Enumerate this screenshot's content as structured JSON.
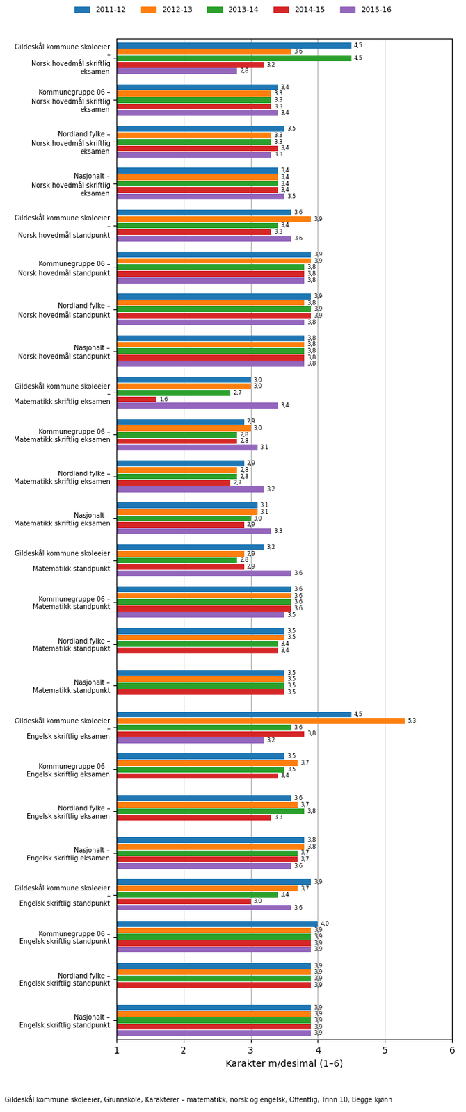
{
  "chart_data": {
    "type": "bar",
    "orientation": "horizontal",
    "xlabel": "Karakter m/desimal (1–6)",
    "annotations": [
      "Gildeskål kommune skoleeier, Grunnskole, Karakterer – matematikk, norsk og engelsk, Offentlig, Trinn 10, Begge kjønn"
    ],
    "xlim": [
      1,
      6
    ],
    "xticks": [
      1,
      2,
      3,
      4,
      5,
      6
    ],
    "grid": true,
    "legend": "upper center",
    "data_labels": true,
    "categories": [
      "Gildeskål kommune skoleeier\n–\nNorsk hovedmål skriftlig\neksamen",
      "Kommunegruppe 06 –\nNorsk hovedmål skriftlig\neksamen",
      "Nordland fylke –\nNorsk hovedmål skriftlig\neksamen",
      "Nasjonalt –\nNorsk hovedmål skriftlig\neksamen",
      "Gildeskål kommune skoleeier\n–\nNorsk hovedmål standpunkt",
      "Kommunegruppe 06 –\nNorsk hovedmål standpunkt",
      "Nordland fylke –\nNorsk hovedmål standpunkt",
      "Nasjonalt –\nNorsk hovedmål standpunkt",
      "Gildeskål kommune skoleeier\n–\nMatematikk skriftlig eksamen",
      "Kommunegruppe 06 –\nMatematikk skriftlig eksamen",
      "Nordland fylke –\nMatematikk skriftlig eksamen",
      "Nasjonalt –\nMatematikk skriftlig eksamen",
      "Gildeskål kommune skoleeier\n–\nMatematikk standpunkt",
      "Kommunegruppe 06 –\nMatematikk standpunkt",
      "Nordland fylke –\nMatematikk standpunkt",
      "Nasjonalt –\nMatematikk standpunkt",
      "Gildeskål kommune skoleeier\n–\nEngelsk skriftlig eksamen",
      "Kommunegruppe 06 –\nEngelsk skriftlig eksamen",
      "Nordland fylke –\nEngelsk skriftlig eksamen",
      "Nasjonalt –\nEngelsk skriftlig eksamen",
      "Gildeskål kommune skoleeier\n–\nEngelsk skriftlig standpunkt",
      "Kommunegruppe 06 –\nEngelsk skriftlig standpunkt",
      "Nordland fylke –\nEngelsk skriftlig standpunkt",
      "Nasjonalt –\nEngelsk skriftlig standpunkt"
    ],
    "series": [
      {
        "name": "2011-12",
        "values": [
          4.5,
          3.4,
          3.5,
          3.4,
          3.6,
          3.9,
          3.9,
          3.8,
          3.0,
          2.9,
          2.9,
          3.1,
          3.2,
          3.6,
          3.5,
          3.5,
          4.5,
          3.5,
          3.6,
          3.8,
          3.9,
          4.0,
          3.9,
          3.9
        ],
        "value_labels": [
          "4,5",
          "3,4",
          "3,5",
          "3,4",
          "3,6",
          "3,9",
          "3,9",
          "3,8",
          "3,0",
          "2,9",
          "2,9",
          "3,1",
          "3,2",
          "3,6",
          "3,5",
          "3,5",
          "4,5",
          "3,5",
          "3,6",
          "3,8",
          "3,9",
          "4,0",
          "3,9",
          "3,9"
        ]
      },
      {
        "name": "2012-13",
        "values": [
          3.6,
          3.3,
          3.3,
          3.4,
          3.9,
          3.9,
          3.8,
          3.8,
          3.0,
          3.0,
          2.8,
          3.1,
          2.9,
          3.6,
          3.5,
          3.5,
          5.3,
          3.7,
          3.7,
          3.8,
          3.7,
          3.9,
          3.9,
          3.9
        ],
        "value_labels": [
          "3,6",
          "3,3",
          "3,3",
          "3,4",
          "3,9",
          "3,9",
          "3,8",
          "3,8",
          "3,0",
          "3,0",
          "2,8",
          "3,1",
          "2,9",
          "3,6",
          "3,5",
          "3,5",
          "5,3",
          "3,7",
          "3,7",
          "3,8",
          "3,7",
          "3,9",
          "3,9",
          "3,9"
        ]
      },
      {
        "name": "2013-14",
        "values": [
          4.5,
          3.3,
          3.3,
          3.4,
          3.4,
          3.8,
          3.9,
          3.8,
          2.7,
          2.8,
          2.8,
          3.0,
          2.8,
          3.6,
          3.4,
          3.5,
          3.6,
          3.5,
          3.8,
          3.7,
          3.4,
          3.9,
          3.9,
          3.9
        ],
        "value_labels": [
          "4,5",
          "3,3",
          "3,3",
          "3,4",
          "3,4",
          "3,8",
          "3,9",
          "3,8",
          "2,7",
          "2,8",
          "2,8",
          "3,0",
          "2,8",
          "3,6",
          "3,4",
          "3,5",
          "3,6",
          "3,5",
          "3,8",
          "3,7",
          "3,4",
          "3,9",
          "3,9",
          "3,9"
        ]
      },
      {
        "name": "2014-15",
        "values": [
          3.2,
          3.3,
          3.4,
          3.4,
          3.3,
          3.8,
          3.9,
          3.8,
          1.6,
          2.8,
          2.7,
          2.9,
          2.9,
          3.6,
          3.4,
          3.5,
          3.8,
          3.4,
          3.3,
          3.7,
          3.0,
          3.9,
          3.9,
          3.9
        ],
        "value_labels": [
          "3,2",
          "3,3",
          "3,4",
          "3,4",
          "3,3",
          "3,8",
          "3,9",
          "3,8",
          "1,6",
          "2,8",
          "2,7",
          "2,9",
          "2,9",
          "3,6",
          "3,4",
          "3,5",
          "3,8",
          "3,4",
          "3,3",
          "3,7",
          "3,0",
          "3,9",
          "3,9",
          "3,9"
        ]
      },
      {
        "name": "2015-16",
        "values": [
          2.8,
          3.4,
          3.3,
          3.5,
          3.6,
          3.8,
          3.8,
          3.8,
          3.4,
          3.1,
          3.2,
          3.3,
          3.6,
          3.5,
          null,
          null,
          3.2,
          null,
          null,
          3.6,
          3.6,
          3.9,
          null,
          3.9
        ],
        "value_labels": [
          "2,8",
          "3,4",
          "3,3",
          "3,5",
          "3,6",
          "3,8",
          "3,8",
          "3,8",
          "3,4",
          "3,1",
          "3,2",
          "3,3",
          "3,6",
          "3,5",
          null,
          null,
          "3,2",
          null,
          null,
          "3,6",
          "3,6",
          "3,9",
          null,
          "3,9"
        ]
      }
    ]
  }
}
